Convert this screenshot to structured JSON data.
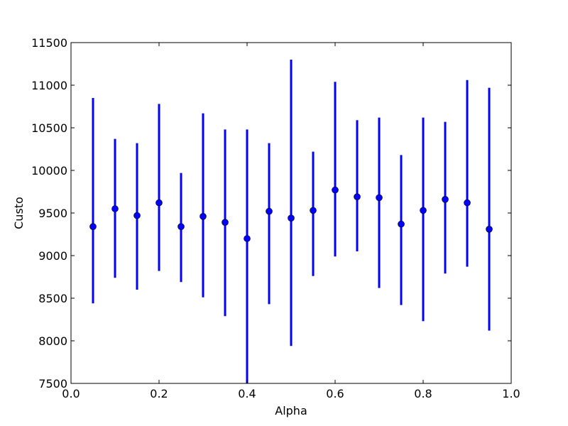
{
  "chart_data": {
    "type": "scatter",
    "title": "",
    "xlabel": "Alpha",
    "ylabel": "Custo",
    "xlim": [
      0.0,
      1.0
    ],
    "ylim": [
      7500,
      11500
    ],
    "xticks": [
      0.0,
      0.2,
      0.4,
      0.6,
      0.8,
      1.0
    ],
    "xtick_labels": [
      "0.0",
      "0.2",
      "0.4",
      "0.6",
      "0.8",
      "1.0"
    ],
    "yticks": [
      7500,
      8000,
      8500,
      9000,
      9500,
      10000,
      10500,
      11000,
      11500
    ],
    "ytick_labels": [
      "7500",
      "8000",
      "8500",
      "9000",
      "9500",
      "10000",
      "10500",
      "11000",
      "11500"
    ],
    "grid": false,
    "color": "#0000ff",
    "points": [
      {
        "x": 0.05,
        "y": 9340,
        "low": 8440,
        "high": 10850
      },
      {
        "x": 0.1,
        "y": 9550,
        "low": 8740,
        "high": 10370
      },
      {
        "x": 0.15,
        "y": 9470,
        "low": 8600,
        "high": 10320
      },
      {
        "x": 0.2,
        "y": 9620,
        "low": 8820,
        "high": 10780
      },
      {
        "x": 0.25,
        "y": 9340,
        "low": 8690,
        "high": 9970
      },
      {
        "x": 0.3,
        "y": 9460,
        "low": 8510,
        "high": 10670
      },
      {
        "x": 0.35,
        "y": 9390,
        "low": 8290,
        "high": 10480
      },
      {
        "x": 0.4,
        "y": 9200,
        "low": 7500,
        "high": 10480
      },
      {
        "x": 0.45,
        "y": 9520,
        "low": 8430,
        "high": 10320
      },
      {
        "x": 0.5,
        "y": 9440,
        "low": 7940,
        "high": 11300
      },
      {
        "x": 0.55,
        "y": 9530,
        "low": 8760,
        "high": 10220
      },
      {
        "x": 0.6,
        "y": 9770,
        "low": 8990,
        "high": 11040
      },
      {
        "x": 0.65,
        "y": 9690,
        "low": 9050,
        "high": 10590
      },
      {
        "x": 0.7,
        "y": 9680,
        "low": 8620,
        "high": 10620
      },
      {
        "x": 0.75,
        "y": 9370,
        "low": 8420,
        "high": 10180
      },
      {
        "x": 0.8,
        "y": 9530,
        "low": 8230,
        "high": 10620
      },
      {
        "x": 0.85,
        "y": 9660,
        "low": 8790,
        "high": 10570
      },
      {
        "x": 0.9,
        "y": 9620,
        "low": 8870,
        "high": 11060
      },
      {
        "x": 0.95,
        "y": 9310,
        "low": 8120,
        "high": 10970
      }
    ]
  }
}
